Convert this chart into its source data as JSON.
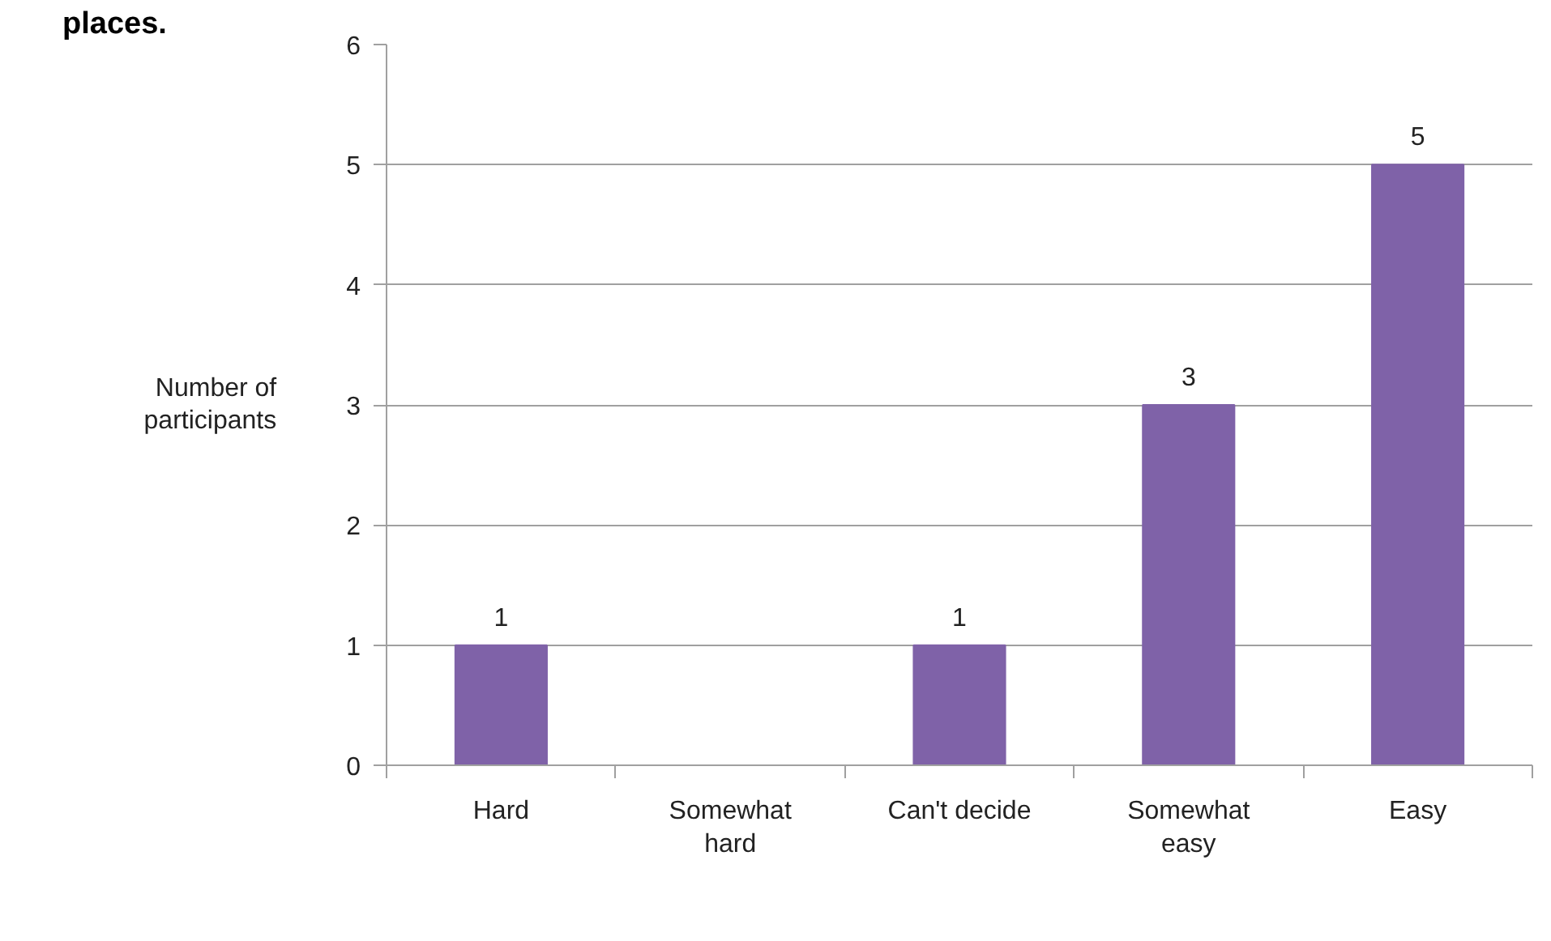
{
  "chart_data": {
    "type": "bar",
    "title": "places.",
    "ylabel": "Number of participants",
    "categories": [
      "Hard",
      "Somewhat hard",
      "Can't decide",
      "Somewhat easy",
      "Easy"
    ],
    "values": [
      1,
      0,
      1,
      3,
      5
    ],
    "value_labels": [
      "1",
      null,
      "1",
      "3",
      "5"
    ],
    "color": "#7f62a8",
    "ylim": [
      0,
      6
    ],
    "yticks": [
      0,
      1,
      2,
      3,
      4,
      5,
      6
    ],
    "grid": "y"
  }
}
